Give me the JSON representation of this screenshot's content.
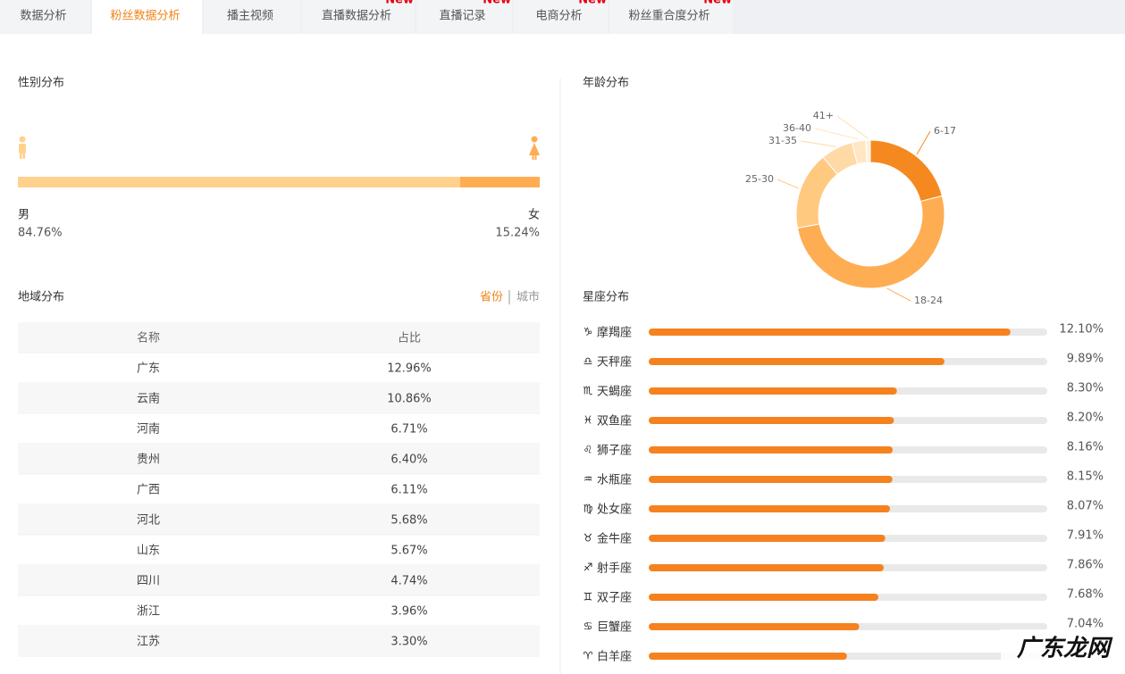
{
  "tabs": [
    {
      "label": "数据分析"
    },
    {
      "label": "粉丝数据分析",
      "active": true
    },
    {
      "label": "播主视频"
    },
    {
      "label": "直播数据分析",
      "badge": "New"
    },
    {
      "label": "直播记录",
      "badge": "New"
    },
    {
      "label": "电商分析",
      "badge": "New"
    },
    {
      "label": "粉丝重合度分析",
      "badge": "New"
    }
  ],
  "gender": {
    "title": "性别分布",
    "series": [
      {
        "name": "男",
        "value": 84.76,
        "label": "84.76%",
        "color": "#ffd18c"
      },
      {
        "name": "女",
        "value": 15.24,
        "label": "15.24%",
        "color": "#ffad52"
      }
    ]
  },
  "region": {
    "title": "地域分布",
    "toggle": [
      {
        "label": "省份",
        "active": true
      },
      {
        "label": "城市"
      }
    ],
    "table": {
      "header": [
        "名称",
        "占比"
      ],
      "rows": [
        [
          "广东",
          "12.96%"
        ],
        [
          "云南",
          "10.86%"
        ],
        [
          "河南",
          "6.71%"
        ],
        [
          "贵州",
          "6.40%"
        ],
        [
          "广西",
          "6.11%"
        ],
        [
          "河北",
          "5.68%"
        ],
        [
          "山东",
          "5.67%"
        ],
        [
          "四川",
          "4.74%"
        ],
        [
          "浙江",
          "3.96%"
        ],
        [
          "江苏",
          "3.30%"
        ]
      ]
    }
  },
  "age": {
    "title": "年龄分布",
    "type": "pie",
    "categories": [
      "6-17",
      "18-24",
      "25-30",
      "31-35",
      "36-40",
      "41+"
    ],
    "values": [
      21,
      51,
      17,
      7,
      3,
      1
    ],
    "colors": [
      "#f5891f",
      "#ffad52",
      "#ffc980",
      "#ffd9a6",
      "#ffe6c4",
      "#fff0dc"
    ]
  },
  "zodiac": {
    "title": "星座分布",
    "type": "bar",
    "signs": [
      "♑",
      "♎",
      "♏",
      "♓",
      "♌",
      "♒",
      "♍",
      "♉",
      "♐",
      "♊",
      "♋",
      "♈"
    ],
    "categories": [
      "摩羯座",
      "天秤座",
      "天蝎座",
      "双鱼座",
      "狮子座",
      "水瓶座",
      "处女座",
      "金牛座",
      "射手座",
      "双子座",
      "巨蟹座",
      "白羊座"
    ],
    "values": [
      12.1,
      9.89,
      8.3,
      8.2,
      8.16,
      8.15,
      8.07,
      7.91,
      7.86,
      7.68,
      7.04,
      6.63
    ],
    "value_labels": [
      "12.10%",
      "9.89%",
      "8.30%",
      "8.20%",
      "8.16%",
      "8.15%",
      "8.07%",
      "7.91%",
      "7.86%",
      "7.68%",
      "7.04%",
      null
    ],
    "color": "#f5821f",
    "xlim": [
      0,
      13.33
    ]
  },
  "watermark": "广东龙网"
}
